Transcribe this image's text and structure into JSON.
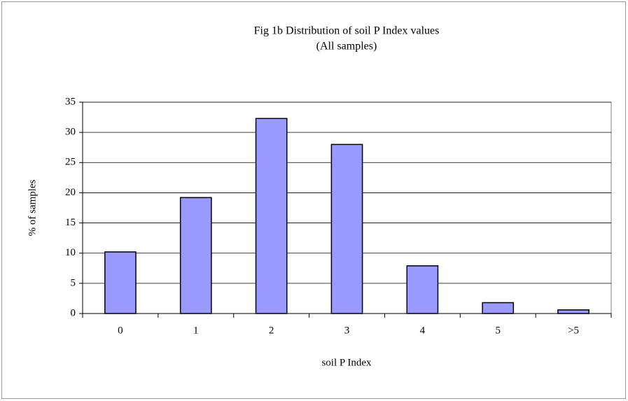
{
  "chart_data": {
    "type": "bar",
    "title": "Fig 1b Distribution of soil P Index values",
    "subtitle": "(All samples)",
    "x_label": "soil P Index",
    "y_label": "% of samples",
    "categories": [
      "0",
      "1",
      "2",
      "3",
      "4",
      "5",
      ">5"
    ],
    "values": [
      10.2,
      19.2,
      32.3,
      28.0,
      7.9,
      1.8,
      0.6
    ],
    "color": "#9999ff",
    "ylim": [
      0,
      35
    ],
    "yticks": [
      0,
      5,
      10,
      15,
      20,
      25,
      30,
      35
    ],
    "grid": true
  }
}
